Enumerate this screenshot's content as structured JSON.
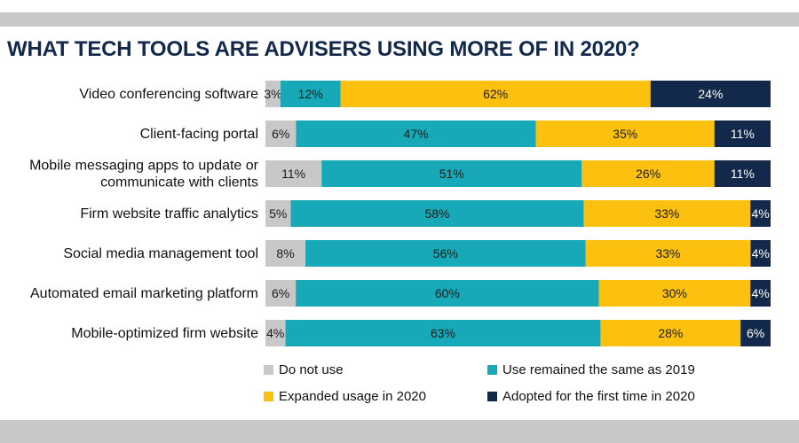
{
  "title": "WHAT TECH TOOLS ARE ADVISERS USING MORE OF IN 2020?",
  "colors": {
    "do_not_use": "#c8c8c8",
    "same": "#17a9b8",
    "expanded": "#fcc10f",
    "first_time": "#13294b",
    "label_dark_text": "#1a1a1a",
    "label_light_text": "#ffffff"
  },
  "chart_data": {
    "type": "bar",
    "stacked": true,
    "orientation": "horizontal",
    "title": "WHAT TECH TOOLS ARE ADVISERS USING MORE OF IN 2020?",
    "legend_position": "bottom",
    "grid": false,
    "xlim": [
      0,
      100
    ],
    "categories": [
      [
        "Video conferencing software"
      ],
      [
        "Client-facing portal"
      ],
      [
        "Mobile messaging apps to update or",
        "communicate with clients"
      ],
      [
        "Firm website traffic analytics"
      ],
      [
        "Social media management tool"
      ],
      [
        "Automated email marketing platform"
      ],
      [
        "Mobile-optimized firm website"
      ]
    ],
    "series": [
      {
        "name": "Do not use",
        "color_key": "do_not_use",
        "values": [
          3,
          6,
          11,
          5,
          8,
          6,
          4
        ],
        "labels": [
          "3%",
          "6%",
          "11%",
          "5%",
          "8%",
          "6%",
          "4%"
        ]
      },
      {
        "name": "Use remained the same as 2019",
        "color_key": "same",
        "values": [
          12,
          47,
          51,
          58,
          56,
          60,
          63
        ],
        "labels": [
          "12%",
          "47%",
          "51%",
          "58%",
          "56%",
          "60%",
          "63%"
        ]
      },
      {
        "name": "Expanded usage in 2020",
        "color_key": "expanded",
        "values": [
          62,
          35,
          26,
          33,
          33,
          30,
          28
        ],
        "labels": [
          "62%",
          "35%",
          "26%",
          "33%",
          "33%",
          "30%",
          "28%"
        ]
      },
      {
        "name": "Adopted for the first time in 2020",
        "color_key": "first_time",
        "values": [
          24,
          11,
          11,
          4,
          4,
          4,
          6
        ],
        "labels": [
          "24%",
          "11%",
          "11%",
          "4%",
          "4%",
          "4%",
          "6%"
        ]
      }
    ]
  }
}
